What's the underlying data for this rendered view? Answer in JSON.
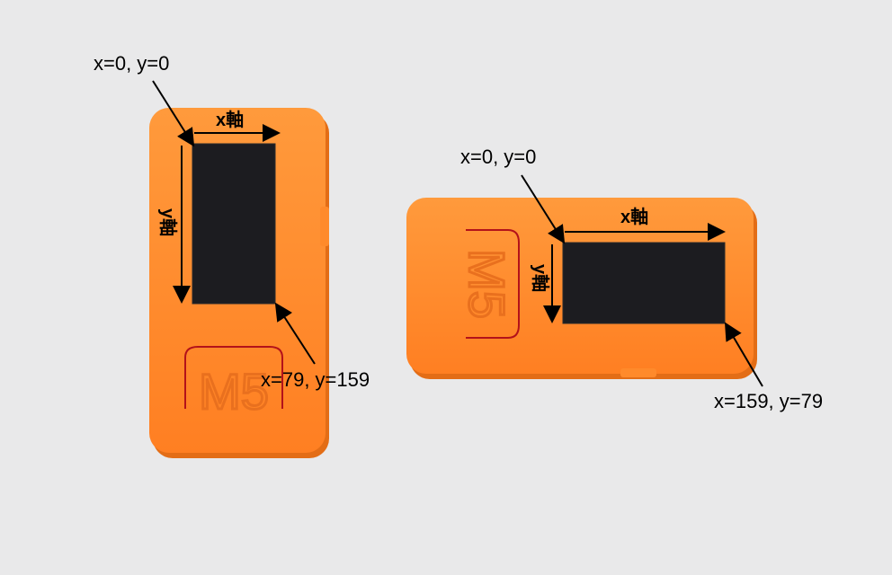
{
  "scene": {
    "description_alt": "Two orange M5 devices with displays and coordinate annotations",
    "colors": {
      "background": "#e9e9ea",
      "device_orange": "#ff8a2b",
      "device_shadow": "#e06a14",
      "screen": "#1c1c20",
      "logo_line": "#b3121a"
    }
  },
  "devices": [
    {
      "logo_text": "M5",
      "origin_label": "x=0, y=0",
      "end_label": "x=79, y=159",
      "x_axis_label": "x軸",
      "y_axis_label": "y軸"
    },
    {
      "logo_text": "M5",
      "origin_label": "x=0, y=0",
      "end_label": "x=159, y=79",
      "x_axis_label": "x軸",
      "y_axis_label": "y軸"
    }
  ]
}
